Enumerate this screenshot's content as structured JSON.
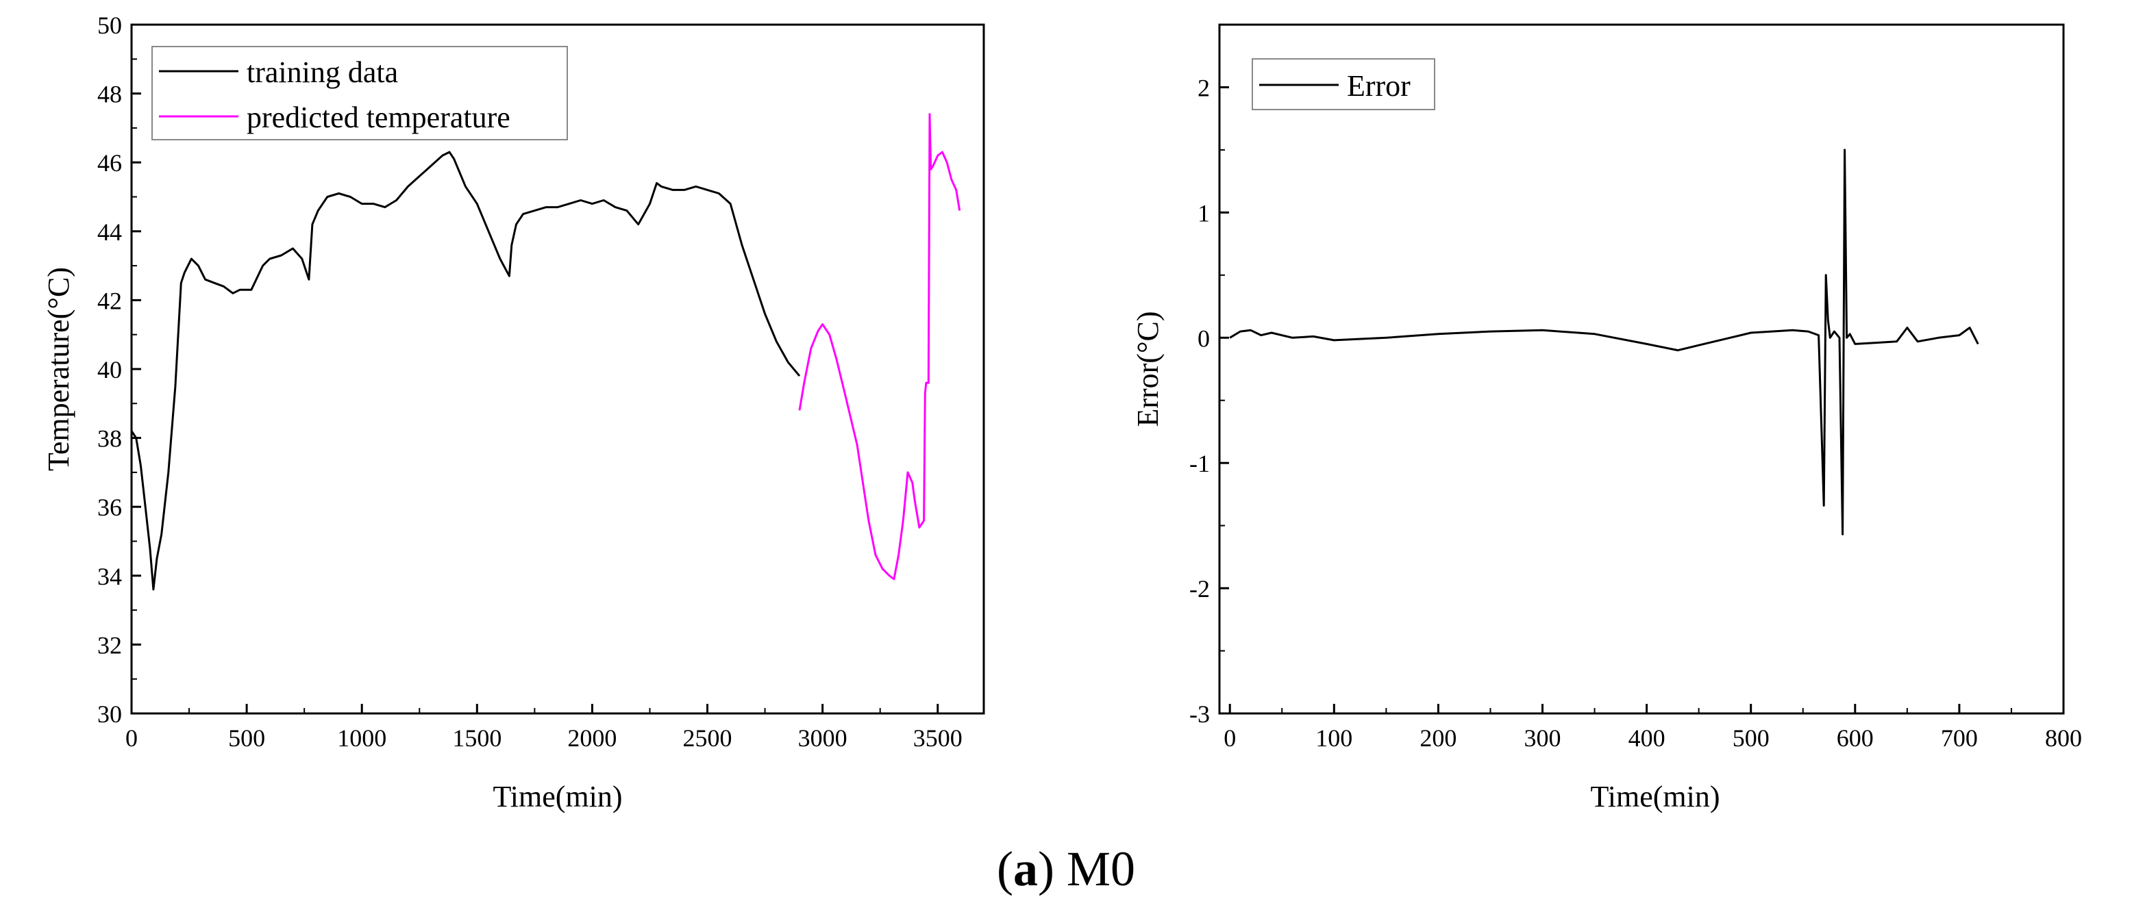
{
  "chart_data": [
    {
      "type": "line",
      "xlabel": "Time(min)",
      "ylabel": "Temperature(°C)",
      "xlim": [
        0,
        3700
      ],
      "ylim": [
        30,
        50
      ],
      "xticks": [
        0,
        500,
        1000,
        1500,
        2000,
        2500,
        3000,
        3500
      ],
      "yticks": [
        30,
        32,
        34,
        36,
        38,
        40,
        42,
        44,
        46,
        48,
        50
      ],
      "legend_position": "top-left",
      "series": [
        {
          "name": "training data",
          "color": "#000000",
          "x": [
            0,
            20,
            40,
            60,
            80,
            95,
            110,
            130,
            160,
            190,
            215,
            230,
            260,
            290,
            320,
            360,
            400,
            440,
            470,
            520,
            570,
            600,
            650,
            700,
            740,
            770,
            785,
            810,
            850,
            900,
            950,
            1000,
            1050,
            1100,
            1150,
            1200,
            1250,
            1300,
            1350,
            1380,
            1400,
            1450,
            1500,
            1550,
            1600,
            1640,
            1650,
            1670,
            1700,
            1750,
            1800,
            1850,
            1900,
            1950,
            2000,
            2050,
            2100,
            2150,
            2200,
            2250,
            2280,
            2300,
            2350,
            2400,
            2450,
            2500,
            2550,
            2600,
            2650,
            2700,
            2750,
            2800,
            2850,
            2900
          ],
          "values": [
            38.2,
            38.0,
            37.2,
            36.0,
            34.8,
            33.6,
            34.5,
            35.2,
            37.0,
            39.5,
            42.5,
            42.8,
            43.2,
            43.0,
            42.6,
            42.5,
            42.4,
            42.2,
            42.3,
            42.3,
            43.0,
            43.2,
            43.3,
            43.5,
            43.2,
            42.6,
            44.2,
            44.6,
            45.0,
            45.1,
            45.0,
            44.8,
            44.8,
            44.7,
            44.9,
            45.3,
            45.6,
            45.9,
            46.2,
            46.3,
            46.1,
            45.3,
            44.8,
            44.0,
            43.2,
            42.7,
            43.6,
            44.2,
            44.5,
            44.6,
            44.7,
            44.7,
            44.8,
            44.9,
            44.8,
            44.9,
            44.7,
            44.6,
            44.2,
            44.8,
            45.4,
            45.3,
            45.2,
            45.2,
            45.3,
            45.2,
            45.1,
            44.8,
            43.6,
            42.6,
            41.6,
            40.8,
            40.2,
            39.8
          ]
        },
        {
          "name": "predicted temperature",
          "color": "#ff00ff",
          "x": [
            2900,
            2920,
            2950,
            2980,
            3000,
            3030,
            3060,
            3100,
            3150,
            3200,
            3230,
            3260,
            3290,
            3310,
            3330,
            3350,
            3370,
            3390,
            3400,
            3420,
            3440,
            3445,
            3450,
            3460,
            3465,
            3470,
            3480,
            3500,
            3520,
            3540,
            3560,
            3580,
            3595
          ],
          "values": [
            38.8,
            39.6,
            40.6,
            41.1,
            41.3,
            41.0,
            40.3,
            39.2,
            37.8,
            35.6,
            34.6,
            34.2,
            34.0,
            33.9,
            34.6,
            35.6,
            37.0,
            36.7,
            36.2,
            35.4,
            35.6,
            39.3,
            39.6,
            39.6,
            47.4,
            45.8,
            45.9,
            46.2,
            46.3,
            46.0,
            45.5,
            45.2,
            44.6
          ]
        }
      ]
    },
    {
      "type": "line",
      "xlabel": "Time(min)",
      "ylabel": "Error(°C)",
      "xlim": [
        -10,
        800
      ],
      "ylim": [
        -3,
        2.5
      ],
      "xticks": [
        0,
        100,
        200,
        300,
        400,
        500,
        600,
        700,
        800
      ],
      "yticks": [
        -3,
        -2,
        -1,
        0,
        1,
        2
      ],
      "legend_position": "top-left",
      "series": [
        {
          "name": "Error",
          "color": "#000000",
          "x": [
            0,
            10,
            20,
            30,
            40,
            60,
            80,
            100,
            150,
            200,
            250,
            300,
            350,
            400,
            430,
            450,
            480,
            500,
            520,
            540,
            555,
            565,
            570,
            572,
            574,
            576,
            580,
            585,
            588,
            590,
            592,
            595,
            600,
            620,
            640,
            650,
            660,
            680,
            700,
            710,
            718
          ],
          "values": [
            0.0,
            0.05,
            0.06,
            0.02,
            0.04,
            0.0,
            0.01,
            -0.02,
            0.0,
            0.03,
            0.05,
            0.06,
            0.03,
            -0.05,
            -0.1,
            -0.06,
            0.0,
            0.04,
            0.05,
            0.06,
            0.05,
            0.02,
            -1.34,
            0.5,
            0.14,
            0.0,
            0.05,
            0.0,
            -1.57,
            1.5,
            0.0,
            0.03,
            -0.05,
            -0.04,
            -0.03,
            0.08,
            -0.03,
            0.0,
            0.02,
            0.08,
            -0.05
          ]
        }
      ]
    }
  ],
  "caption": {
    "label": "a",
    "text": "M0"
  }
}
